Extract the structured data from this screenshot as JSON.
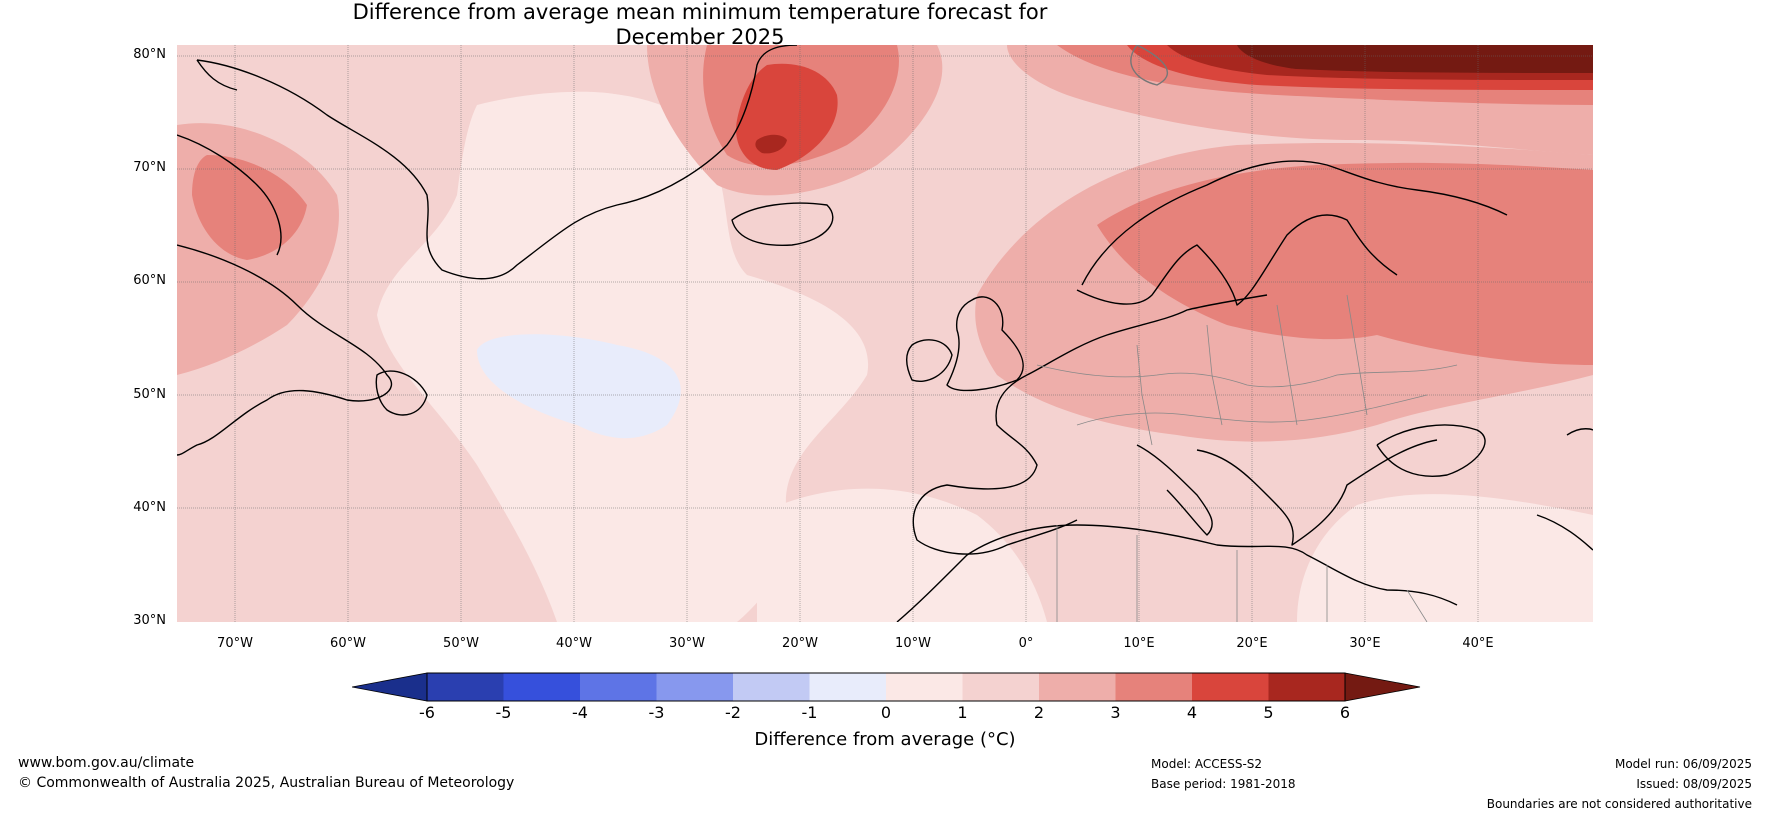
{
  "map": {
    "title_line1": "Difference from average mean minimum temperature forecast for",
    "title_line2": "December 2025",
    "lat_labels": [
      "80°N",
      "70°N",
      "60°N",
      "50°N",
      "40°N",
      "30°N"
    ],
    "lon_labels": [
      "70°W",
      "60°W",
      "50°W",
      "40°W",
      "30°W",
      "20°W",
      "10°W",
      "0°",
      "10°E",
      "20°E",
      "30°E",
      "40°E"
    ],
    "colorbar": {
      "label": "Difference from average (°C)",
      "ticks": [
        "-6",
        "-5",
        "-4",
        "-3",
        "-2",
        "-1",
        "0",
        "1",
        "2",
        "3",
        "4",
        "5",
        "6"
      ],
      "colors": [
        "#1a2f8c",
        "#2a3fb0",
        "#3650dc",
        "#5e74e6",
        "#8798ee",
        "#c2caf4",
        "#e8ecfb",
        "#fbe8e6",
        "#f4d2d0",
        "#eeaeaa",
        "#e6827b",
        "#d9453c",
        "#a8271f",
        "#741a12"
      ]
    }
  },
  "footer": {
    "website": "www.bom.gov.au/climate",
    "copyright": "© Commonwealth of Australia 2025, Australian Bureau of Meteorology",
    "model": "Model: ACCESS-S2",
    "base_period": "Base period: 1981-2018",
    "model_run": "Model run: 06/09/2025",
    "issued": "Issued: 08/09/2025",
    "disclaimer": "Boundaries are not considered authoritative"
  }
}
